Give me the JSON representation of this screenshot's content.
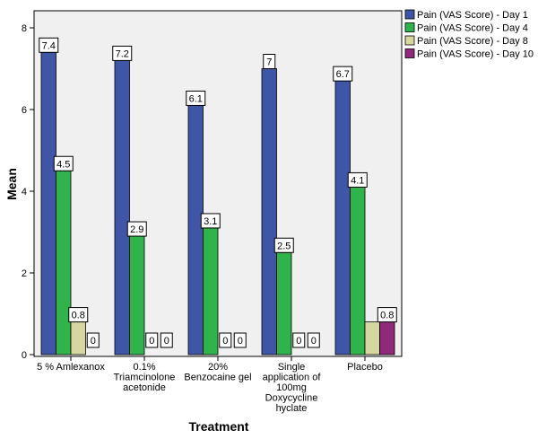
{
  "chart_data": {
    "type": "bar",
    "xlabel": "Treatment",
    "ylabel": "Mean",
    "ylim": [
      0,
      8
    ],
    "yticks": [
      0,
      2,
      4,
      6,
      8
    ],
    "grid": false,
    "legend_position": "top-right",
    "categories": [
      [
        "5 % Amlexanox"
      ],
      [
        "0.1%",
        "Triamcinolone",
        "acetonide"
      ],
      [
        "20%",
        "Benzocaine gel"
      ],
      [
        "Single",
        "application of",
        "100mg",
        "Doxycycline",
        "hyclate"
      ],
      [
        "Placebo"
      ]
    ],
    "series": [
      {
        "name": "Pain (VAS Score) - Day 1",
        "color": "#3f55a6",
        "values": [
          7.4,
          7.2,
          6.1,
          7,
          6.7
        ],
        "labels": [
          "7.4",
          "7.2",
          "6.1",
          "7",
          "6.7"
        ]
      },
      {
        "name": "Pain (VAS Score) - Day 4",
        "color": "#2fb34a",
        "values": [
          4.5,
          2.9,
          3.1,
          2.5,
          4.1
        ],
        "labels": [
          "4.5",
          "2.9",
          "3.1",
          "2.5",
          "4.1"
        ]
      },
      {
        "name": "Pain (VAS Score) - Day 8",
        "color": "#d6d6a0",
        "values": [
          0.8,
          0,
          0,
          0,
          0.8
        ],
        "labels": [
          "0.8",
          "0",
          "0",
          "0",
          ""
        ]
      },
      {
        "name": "Pain (VAS Score) - Day 10",
        "color": "#8e2a79",
        "values": [
          0,
          0,
          0,
          0,
          0.8
        ],
        "labels": [
          "0",
          "0",
          "0",
          "0",
          "0.8"
        ]
      }
    ]
  }
}
